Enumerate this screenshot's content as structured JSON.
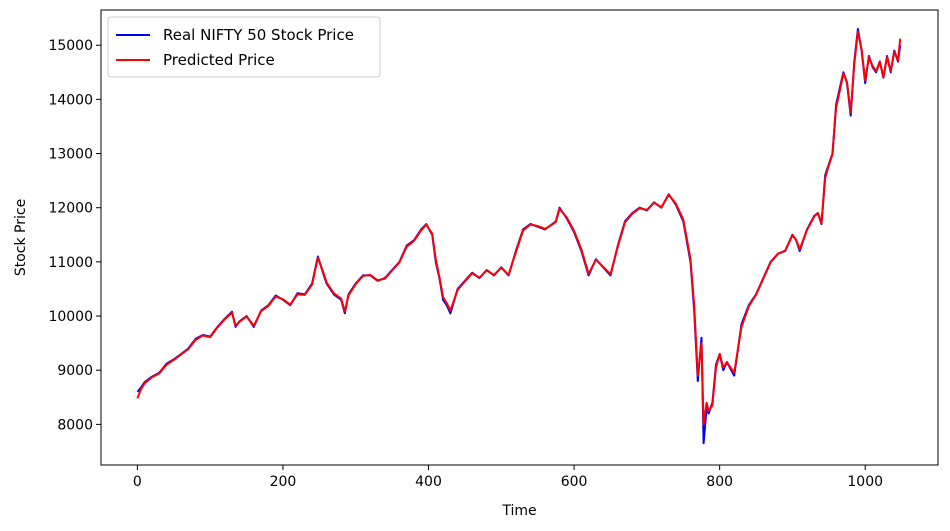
{
  "chart_data": {
    "type": "line",
    "title": "",
    "xlabel": "Time",
    "ylabel": "Stock Price",
    "xlim": [
      -50,
      1100
    ],
    "ylim": [
      7250,
      15650
    ],
    "xticks": [
      0,
      200,
      400,
      600,
      800,
      1000
    ],
    "yticks": [
      8000,
      9000,
      10000,
      11000,
      12000,
      13000,
      14000,
      15000
    ],
    "xtick_labels": [
      "0",
      "200",
      "400",
      "600",
      "800",
      "1000"
    ],
    "ytick_labels": [
      "8000",
      "9000",
      "10000",
      "11000",
      "12000",
      "13000",
      "14000",
      "15000"
    ],
    "grid": false,
    "legend_position": "upper-left",
    "series": [
      {
        "name": "Real NIFTY 50 Stock Price",
        "color": "#0000ff",
        "x": [
          0,
          5,
          10,
          20,
          30,
          40,
          50,
          60,
          70,
          80,
          90,
          100,
          110,
          120,
          130,
          135,
          140,
          150,
          160,
          170,
          180,
          190,
          200,
          210,
          220,
          230,
          240,
          248,
          255,
          260,
          270,
          280,
          285,
          290,
          300,
          310,
          320,
          330,
          340,
          350,
          360,
          370,
          380,
          390,
          397,
          405,
          410,
          415,
          420,
          425,
          430,
          440,
          450,
          460,
          470,
          480,
          490,
          500,
          510,
          520,
          530,
          540,
          550,
          560,
          570,
          575,
          580,
          590,
          600,
          610,
          620,
          630,
          640,
          650,
          660,
          670,
          680,
          690,
          700,
          710,
          720,
          730,
          740,
          750,
          760,
          765,
          770,
          775,
          778,
          782,
          785,
          790,
          795,
          800,
          805,
          810,
          820,
          830,
          840,
          850,
          860,
          870,
          880,
          890,
          900,
          905,
          910,
          920,
          930,
          935,
          940,
          945,
          950,
          955,
          960,
          965,
          970,
          975,
          980,
          985,
          990,
          995,
          1000,
          1005,
          1010,
          1015,
          1020,
          1025,
          1030,
          1035,
          1040,
          1045,
          1048
        ],
        "values": [
          8600,
          8680,
          8780,
          8880,
          8950,
          9120,
          9200,
          9300,
          9400,
          9580,
          9650,
          9620,
          9800,
          9950,
          10080,
          9800,
          9900,
          10000,
          9800,
          10100,
          10200,
          10380,
          10300,
          10200,
          10420,
          10400,
          10600,
          11100,
          10800,
          10600,
          10400,
          10300,
          10050,
          10400,
          10600,
          10750,
          10750,
          10650,
          10700,
          10850,
          11000,
          11300,
          11400,
          11600,
          11700,
          11500,
          11000,
          10700,
          10300,
          10200,
          10050,
          10500,
          10650,
          10800,
          10700,
          10850,
          10750,
          10900,
          10750,
          11200,
          11600,
          11700,
          11650,
          11600,
          11700,
          11750,
          12000,
          11800,
          11550,
          11200,
          10750,
          11050,
          10900,
          10750,
          11300,
          11750,
          11900,
          12000,
          11950,
          12100,
          12000,
          12250,
          12050,
          11750,
          11000,
          10100,
          8800,
          9600,
          7650,
          8300,
          8200,
          8400,
          9100,
          9300,
          9000,
          9150,
          8900,
          9850,
          10200,
          10400,
          10700,
          11000,
          11150,
          11200,
          11500,
          11400,
          11200,
          11600,
          11850,
          11900,
          11700,
          12600,
          12800,
          13000,
          13900,
          14200,
          14500,
          14300,
          13700,
          14700,
          15300,
          14900,
          14300,
          14800,
          14600,
          14500,
          14700,
          14400,
          14800,
          14500,
          14900,
          14700,
          15000
        ]
      },
      {
        "name": "Predicted Price",
        "color": "#ff0000",
        "x": [
          0,
          5,
          10,
          20,
          30,
          40,
          50,
          60,
          70,
          80,
          90,
          100,
          110,
          120,
          130,
          135,
          140,
          150,
          160,
          170,
          180,
          190,
          200,
          210,
          220,
          230,
          240,
          248,
          255,
          260,
          270,
          280,
          285,
          290,
          300,
          310,
          320,
          330,
          340,
          350,
          360,
          370,
          380,
          390,
          397,
          405,
          410,
          415,
          420,
          425,
          430,
          440,
          450,
          460,
          470,
          480,
          490,
          500,
          510,
          520,
          530,
          540,
          550,
          560,
          570,
          575,
          580,
          590,
          600,
          610,
          620,
          630,
          640,
          650,
          660,
          670,
          680,
          690,
          700,
          710,
          720,
          730,
          740,
          750,
          760,
          765,
          770,
          775,
          778,
          782,
          785,
          790,
          795,
          800,
          805,
          810,
          820,
          830,
          840,
          850,
          860,
          870,
          880,
          890,
          900,
          905,
          910,
          920,
          930,
          935,
          940,
          945,
          950,
          955,
          960,
          965,
          970,
          975,
          980,
          985,
          990,
          995,
          1000,
          1005,
          1010,
          1015,
          1020,
          1025,
          1030,
          1035,
          1040,
          1045,
          1048
        ],
        "values": [
          8480,
          8650,
          8760,
          8870,
          8940,
          9100,
          9190,
          9290,
          9390,
          9560,
          9640,
          9610,
          9790,
          9940,
          10060,
          9820,
          9890,
          9990,
          9820,
          10090,
          10190,
          10360,
          10310,
          10210,
          10400,
          10390,
          10580,
          11080,
          10820,
          10620,
          10420,
          10320,
          10080,
          10380,
          10590,
          10740,
          10760,
          10660,
          10690,
          10840,
          10990,
          11280,
          11390,
          11580,
          11690,
          11520,
          11050,
          10720,
          10350,
          10240,
          10100,
          10480,
          10640,
          10790,
          10710,
          10840,
          10760,
          10890,
          10760,
          11180,
          11580,
          11690,
          11660,
          11610,
          11690,
          11740,
          11980,
          11820,
          11570,
          11230,
          10780,
          11040,
          10910,
          10770,
          11280,
          11730,
          11890,
          11990,
          11960,
          12090,
          12010,
          12240,
          12070,
          11780,
          11050,
          10200,
          8900,
          9500,
          8000,
          8400,
          8250,
          8350,
          9050,
          9300,
          9050,
          9150,
          8950,
          9800,
          10180,
          10390,
          10690,
          10990,
          11150,
          11210,
          11490,
          11410,
          11230,
          11590,
          11840,
          11900,
          11720,
          12550,
          12780,
          12990,
          13850,
          14150,
          14480,
          14320,
          13760,
          14650,
          15250,
          14920,
          14350,
          14780,
          14620,
          14520,
          14690,
          14420,
          14780,
          14520,
          14880,
          14720,
          15120
        ]
      }
    ]
  }
}
